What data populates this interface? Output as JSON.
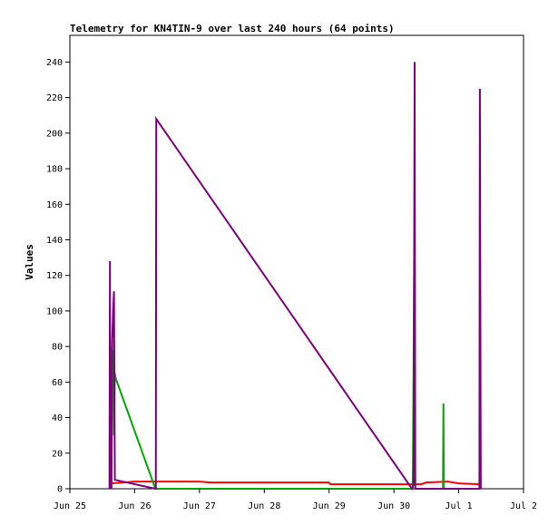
{
  "chart_data": {
    "type": "line",
    "title": "Telemetry for KN4TIN-9 over last 240 hours (64 points)",
    "xlabel": "",
    "ylabel": "Values",
    "x_unit": "date",
    "xlim": [
      "Jun 25 00:00",
      "Jul 2 00:00"
    ],
    "ylim": [
      0,
      255
    ],
    "y_ticks": [
      0,
      20,
      40,
      60,
      80,
      100,
      120,
      140,
      160,
      180,
      200,
      220,
      240
    ],
    "x_ticks": [
      {
        "value": "Jun 25 00:00",
        "label": "Jun 25"
      },
      {
        "value": "Jun 26 00:00",
        "label": "Jun 26"
      },
      {
        "value": "Jun 27 00:00",
        "label": "Jun 27"
      },
      {
        "value": "Jun 28 00:00",
        "label": "Jun 28"
      },
      {
        "value": "Jun 29 00:00",
        "label": "Jun 29"
      },
      {
        "value": "Jun 30 00:00",
        "label": "Jun 30"
      },
      {
        "value": "Jul 1 00:00",
        "label": "Jul 1"
      },
      {
        "value": "Jul 2 00:00",
        "label": "Jul 2"
      }
    ],
    "grid": false,
    "legend": "none",
    "series": [
      {
        "color": "#ff0000",
        "points": [
          [
            "Jun 25 15:00",
            0
          ],
          [
            "Jun 25 15:05",
            3
          ],
          [
            "Jun 26 00:00",
            4
          ],
          [
            "Jun 27 00:00",
            4
          ],
          [
            "Jun 27 04:00",
            3.5
          ],
          [
            "Jun 29 00:00",
            3.5
          ],
          [
            "Jun 29 00:30",
            2.5
          ],
          [
            "Jun 30 10:00",
            2.5
          ],
          [
            "Jun 30 12:00",
            3.5
          ],
          [
            "Jun 30 20:00",
            4
          ],
          [
            "Jul 1 00:00",
            3
          ],
          [
            "Jul 1 08:00",
            2.5
          ],
          [
            "Jul 1 08:10",
            0
          ]
        ]
      },
      {
        "color": "#00aa00",
        "points": [
          [
            "Jun 25 15:20",
            0
          ],
          [
            "Jun 25 15:30",
            80
          ],
          [
            "Jun 25 15:40",
            60
          ],
          [
            "Jun 25 16:00",
            78
          ],
          [
            "Jun 25 16:20",
            30
          ],
          [
            "Jun 25 16:40",
            65
          ],
          [
            "Jun 25 17:00",
            62
          ],
          [
            "Jun 26 07:40",
            0
          ],
          [
            "Jun 30 07:00",
            0
          ],
          [
            "Jun 30 07:30",
            128
          ],
          [
            "Jun 30 07:50",
            0
          ],
          [
            "Jun 30 18:10",
            0
          ],
          [
            "Jun 30 18:20",
            48
          ],
          [
            "Jun 30 18:30",
            0
          ]
        ]
      },
      {
        "color": "#800080",
        "points": [
          [
            "Jun 25 14:40",
            0
          ],
          [
            "Jun 25 14:50",
            128
          ],
          [
            "Jun 25 15:00",
            0
          ],
          [
            "Jun 25 15:10",
            28
          ],
          [
            "Jun 25 15:25",
            0
          ],
          [
            "Jun 25 15:40",
            83
          ],
          [
            "Jun 25 16:00",
            100
          ],
          [
            "Jun 25 16:20",
            111
          ],
          [
            "Jun 25 16:40",
            5
          ],
          [
            "Jun 26 07:40",
            0
          ],
          [
            "Jun 26 07:50",
            0
          ],
          [
            "Jun 26 08:00",
            208
          ],
          [
            "Jun 30 06:40",
            0
          ],
          [
            "Jun 30 07:10",
            2
          ],
          [
            "Jun 30 07:20",
            22
          ],
          [
            "Jun 30 07:40",
            240
          ],
          [
            "Jun 30 07:55",
            0
          ],
          [
            "Jul 1 07:40",
            0
          ],
          [
            "Jul 1 07:50",
            225
          ],
          [
            "Jul 1 08:00",
            112
          ],
          [
            "Jul 1 08:10",
            0
          ]
        ]
      }
    ]
  }
}
